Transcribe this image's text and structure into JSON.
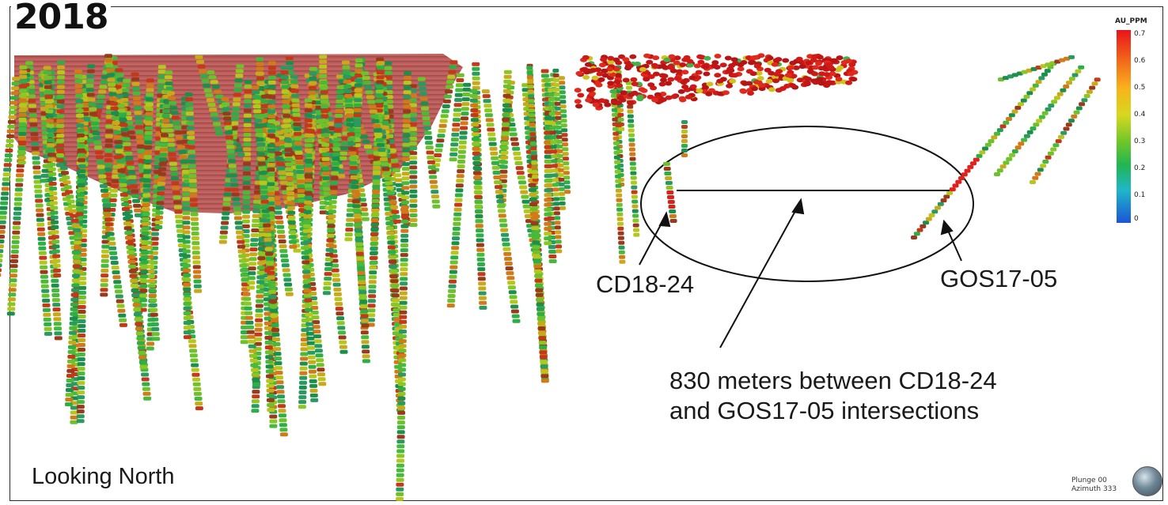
{
  "year_label": "2018",
  "labels": {
    "hole_left": "CD18-24",
    "hole_right": "GOS17-05",
    "distance_note_line1": "830 meters between CD18-24",
    "distance_note_line2": "and GOS17-05 intersections",
    "view_direction": "Looking North"
  },
  "orientation": {
    "plunge": "Plunge 00",
    "azimuth": "Azimuth 333"
  },
  "legend": {
    "title": "AU_PPM",
    "ticks": [
      "0.7",
      "0.6",
      "0.5",
      "0.4",
      "0.3",
      "0.2",
      "0.1",
      "0"
    ],
    "colors": {
      "high": "#e8141b",
      "mid_high": "#f9b21c",
      "mid": "#d6d81e",
      "low_mid": "#6fc62a",
      "low": "#21b650",
      "very_low": "#1fb7c9",
      "zero": "#1b55d6"
    }
  },
  "pit_color": "#b9504f",
  "icons": {
    "compass": "compass-globe-icon"
  }
}
